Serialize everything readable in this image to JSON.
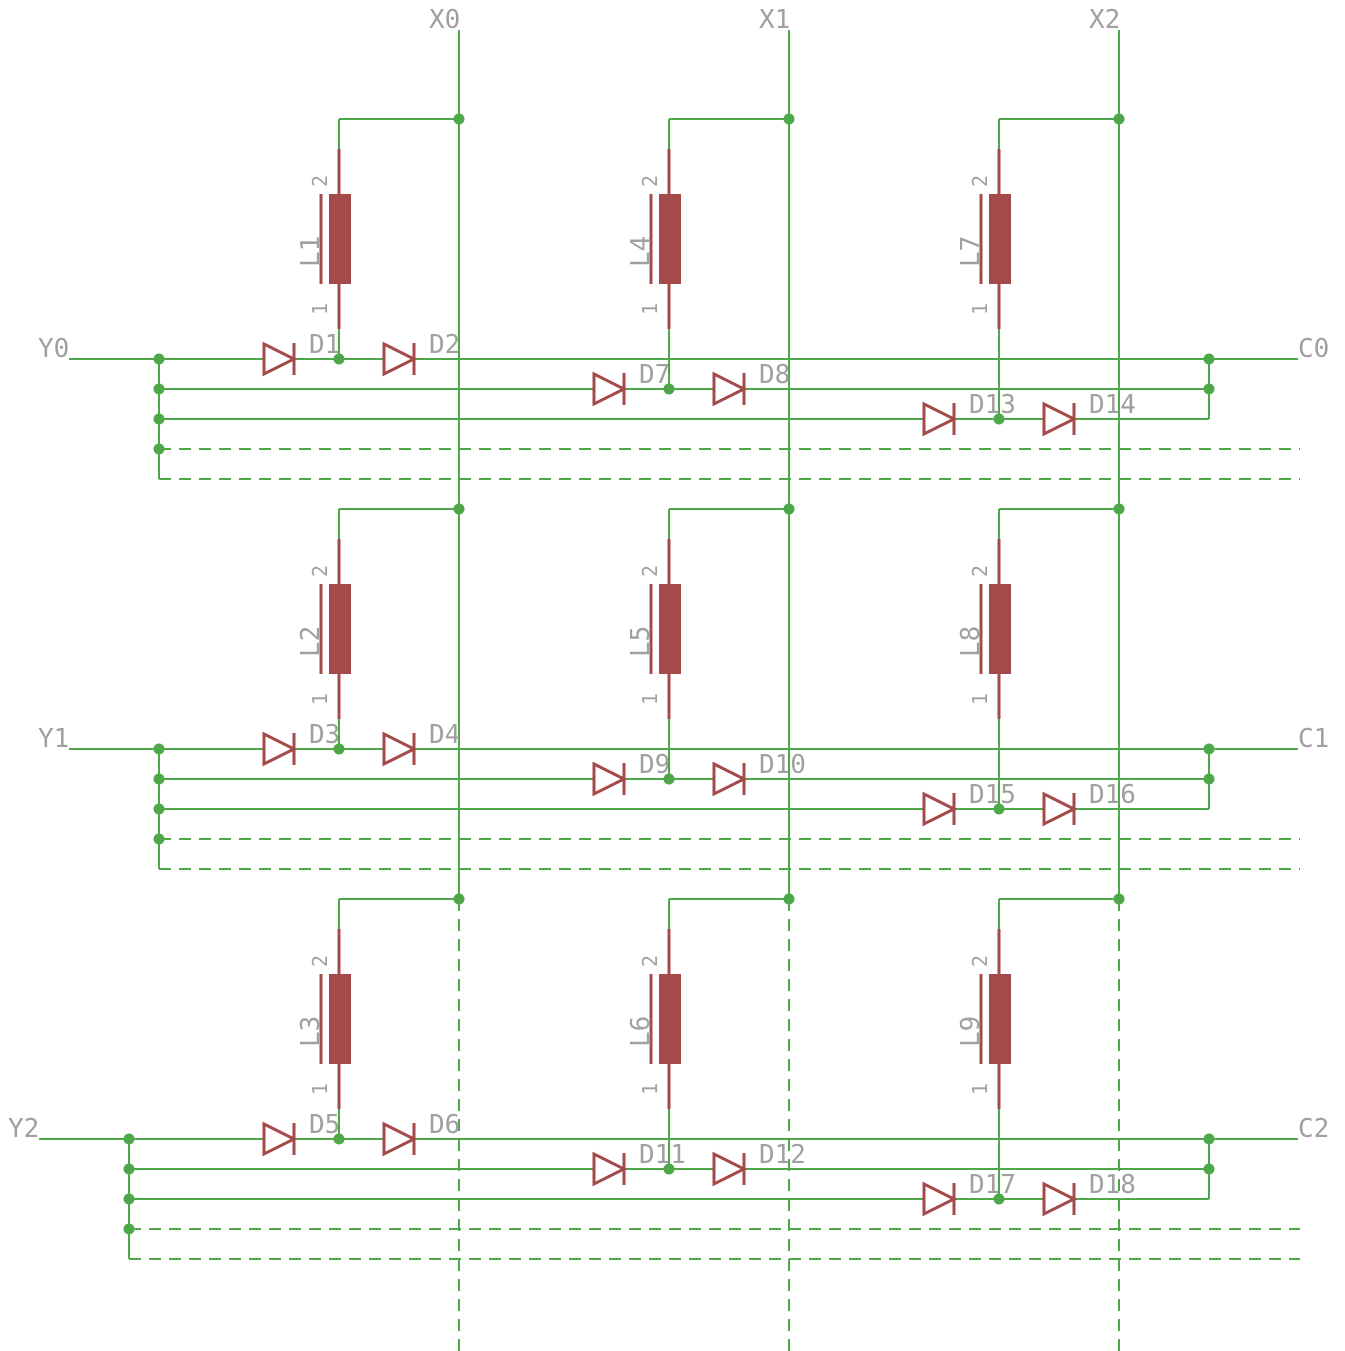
{
  "nets": {
    "columns": [
      "X0",
      "X1",
      "X2"
    ],
    "rows": [
      "Y0",
      "Y1",
      "Y2"
    ],
    "outputs": [
      "C0",
      "C1",
      "C2"
    ]
  },
  "inductor_pins": {
    "top": "2",
    "bottom": "1"
  },
  "inductors": [
    "L1",
    "L2",
    "L3",
    "L4",
    "L5",
    "L6",
    "L7",
    "L8",
    "L9"
  ],
  "diodes": [
    "D1",
    "D2",
    "D3",
    "D4",
    "D5",
    "D6",
    "D7",
    "D8",
    "D9",
    "D10",
    "D11",
    "D12",
    "D13",
    "D14",
    "D15",
    "D16",
    "D17",
    "D18"
  ],
  "colors": {
    "wire": "#4ea84a",
    "part": "#a44a4a",
    "label": "#a0a0a0"
  }
}
